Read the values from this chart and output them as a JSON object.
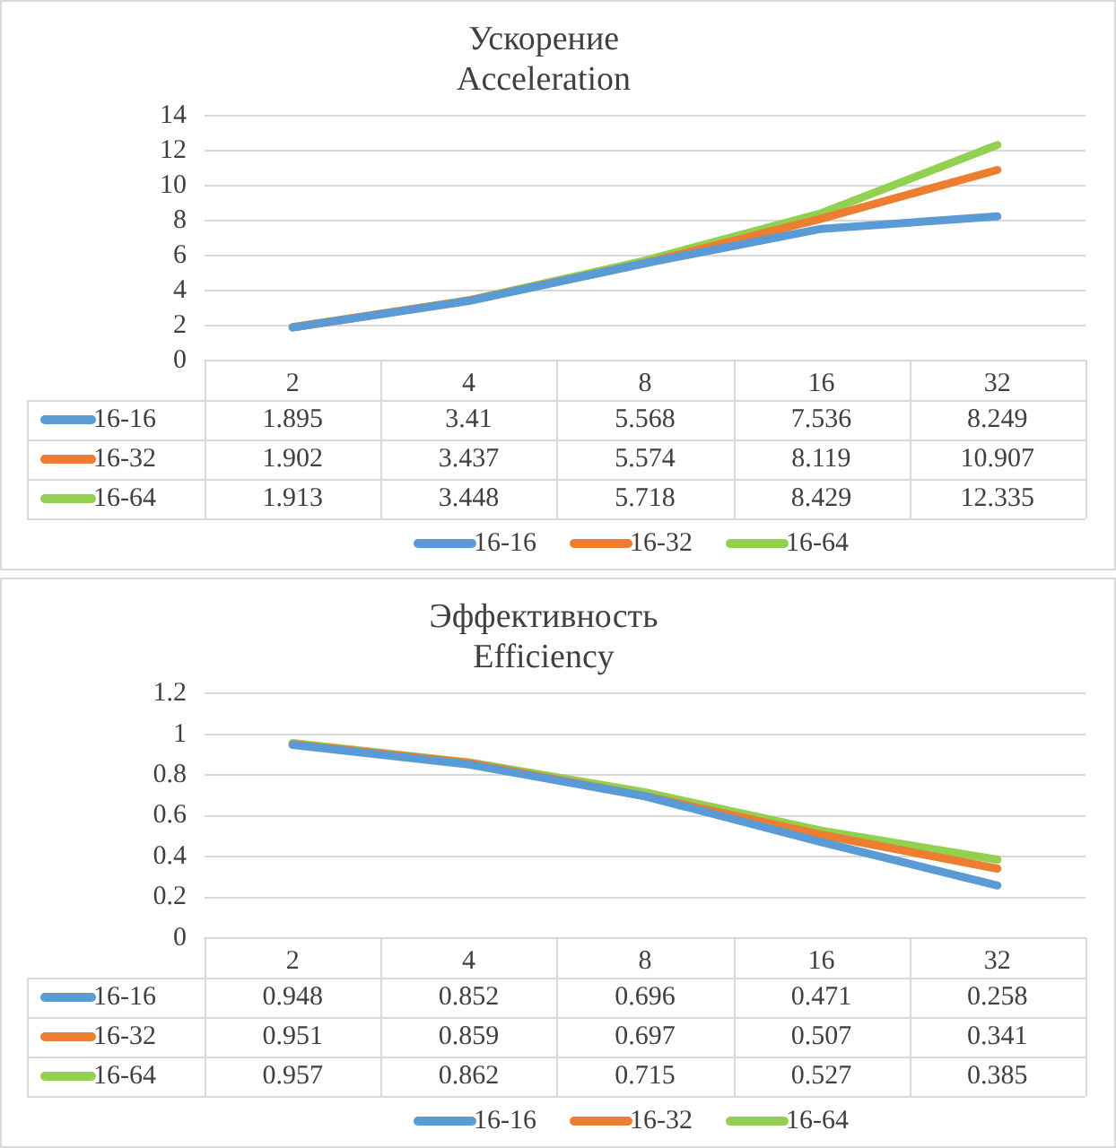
{
  "chart_data": [
    {
      "type": "line",
      "title": "Ускорение",
      "subtitle": "Acceleration",
      "categories": [
        "2",
        "4",
        "8",
        "16",
        "32"
      ],
      "series": [
        {
          "name": "16-16",
          "color": "#5b9bd5",
          "values": [
            1.895,
            3.41,
            5.568,
            7.536,
            8.249
          ]
        },
        {
          "name": "16-32",
          "color": "#ed7d31",
          "values": [
            1.902,
            3.437,
            5.574,
            8.119,
            10.907
          ]
        },
        {
          "name": "16-64",
          "color": "#92d050",
          "values": [
            1.913,
            3.448,
            5.718,
            8.429,
            12.335
          ]
        }
      ],
      "ylim": [
        0,
        14
      ],
      "yticks": [
        0,
        2,
        4,
        6,
        8,
        10,
        12,
        14
      ],
      "grid": "y",
      "legend": "bottom",
      "marker": "none",
      "line_style": "solid",
      "data_labels": true
    },
    {
      "type": "line",
      "title": "Эффективность",
      "subtitle": "Efficiency",
      "categories": [
        "2",
        "4",
        "8",
        "16",
        "32"
      ],
      "series": [
        {
          "name": "16-16",
          "color": "#5b9bd5",
          "values": [
            0.948,
            0.852,
            0.696,
            0.471,
            0.258
          ]
        },
        {
          "name": "16-32",
          "color": "#ed7d31",
          "values": [
            0.951,
            0.859,
            0.697,
            0.507,
            0.341
          ]
        },
        {
          "name": "16-64",
          "color": "#92d050",
          "values": [
            0.957,
            0.862,
            0.715,
            0.527,
            0.385
          ]
        }
      ],
      "ylim": [
        0,
        1.2
      ],
      "yticks": [
        0,
        0.2,
        0.4,
        0.6,
        0.8,
        1,
        1.2
      ],
      "grid": "y",
      "legend": "bottom",
      "marker": "none",
      "line_style": "solid",
      "data_labels": true
    }
  ]
}
